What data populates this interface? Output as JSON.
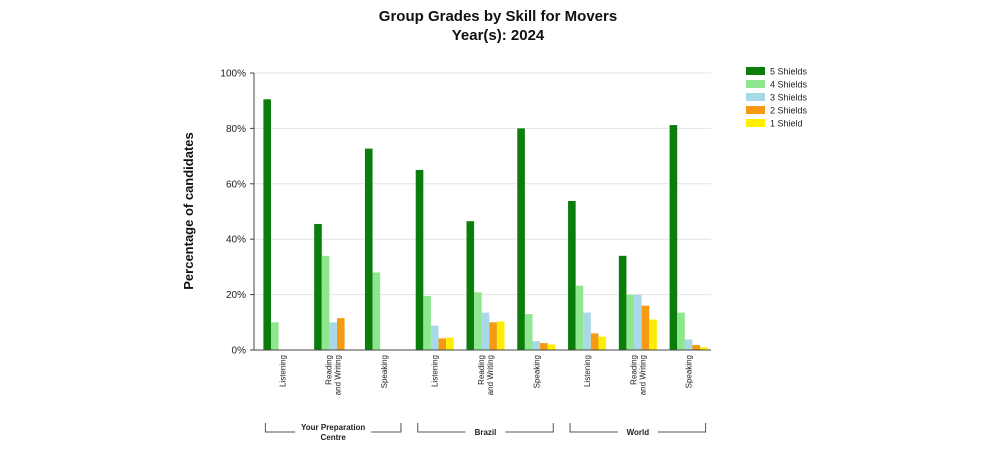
{
  "chart_data": {
    "type": "bar",
    "title": "Group Grades by Skill for Movers",
    "subtitle": "Year(s): 2024",
    "ylabel": "Percentage of candidates",
    "ylim": [
      0,
      100
    ],
    "yticks": [
      "0%",
      "20%",
      "40%",
      "60%",
      "80%",
      "100%"
    ],
    "grid": true,
    "legend_position": "top-right",
    "groups": [
      {
        "name": "Your Preparation Centre",
        "name_lines": [
          "Your Preparation",
          "Centre"
        ],
        "categories": [
          [
            "Listening"
          ],
          [
            "Reading",
            "and Writing"
          ],
          [
            "Speaking"
          ]
        ]
      },
      {
        "name": "Brazil",
        "name_lines": [
          "Brazil"
        ],
        "categories": [
          [
            "Listening"
          ],
          [
            "Reading",
            "and Writing"
          ],
          [
            "Speaking"
          ]
        ]
      },
      {
        "name": "World",
        "name_lines": [
          "World"
        ],
        "categories": [
          [
            "Listening"
          ],
          [
            "Reading",
            "and Writing"
          ],
          [
            "Speaking"
          ]
        ]
      }
    ],
    "categories": [
      "Your Preparation Centre - Listening",
      "Your Preparation Centre - Reading and Writing",
      "Your Preparation Centre - Speaking",
      "Brazil - Listening",
      "Brazil - Reading and Writing",
      "Brazil - Speaking",
      "World - Listening",
      "World - Reading and Writing",
      "World - Speaking"
    ],
    "series": [
      {
        "name": "5 Shields",
        "color": "#0a7d0a",
        "values": [
          90.5,
          45.5,
          72.7,
          65,
          46.5,
          80,
          53.8,
          34,
          81.2
        ]
      },
      {
        "name": "4 Shields",
        "color": "#8ee68e",
        "values": [
          10,
          34,
          28,
          19.5,
          20.8,
          13,
          23.2,
          20,
          13.5
        ]
      },
      {
        "name": "3 Shields",
        "color": "#a9d9e8",
        "values": [
          0,
          10,
          0,
          8.8,
          13.5,
          3.2,
          13.5,
          20,
          3.8
        ]
      },
      {
        "name": "2 Shields",
        "color": "#f59a12",
        "values": [
          0,
          11.5,
          0,
          4.2,
          10,
          2.5,
          6,
          16,
          1.8
        ]
      },
      {
        "name": "1 Shield",
        "color": "#ffee00",
        "values": [
          0,
          0,
          0,
          4.5,
          10.3,
          2,
          4.8,
          11,
          1
        ]
      }
    ]
  }
}
